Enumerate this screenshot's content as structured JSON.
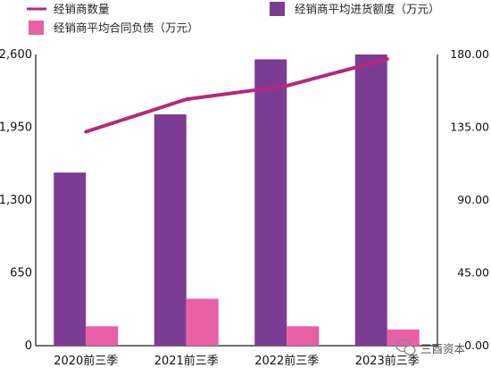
{
  "chart_data": {
    "type": "bar",
    "categories": [
      "2020前三季",
      "2021前三季",
      "2022前三季",
      "2023前三季"
    ],
    "series": [
      {
        "name": "经销商平均进货额度（万元）",
        "kind": "bar",
        "axis": "right",
        "color": "#7d3c93",
        "values": [
          107,
          143,
          177,
          180
        ]
      },
      {
        "name": "经销商平均合同负债（万元）",
        "kind": "bar",
        "axis": "right",
        "color": "#e95fa6",
        "values": [
          12,
          29,
          12,
          10
        ]
      },
      {
        "name": "经销商数量",
        "kind": "line",
        "axis": "left",
        "color": "#b7287c",
        "values": [
          1910,
          2200,
          2320,
          2560
        ]
      }
    ],
    "y_left": {
      "min": 0,
      "max": 2600,
      "ticks": [
        "0",
        "650",
        "1,300",
        "1,950",
        "2,600"
      ]
    },
    "y_right": {
      "min": 0,
      "max": 180,
      "ticks": [
        "0.00",
        "45.00",
        "90.00",
        "135.00",
        "180.00"
      ]
    },
    "legend_position": "top",
    "grid": false
  },
  "watermark": {
    "text": "三酉资本",
    "icon": "wechat-icon"
  }
}
